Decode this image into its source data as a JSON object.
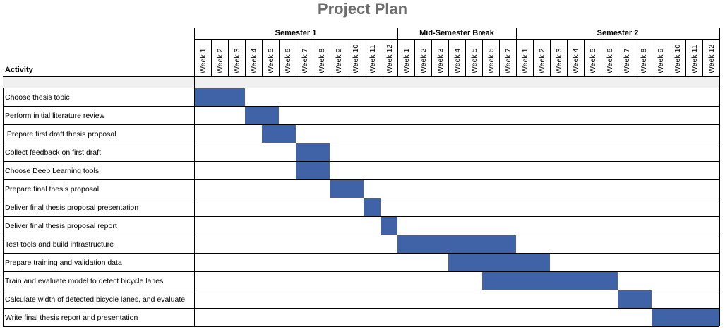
{
  "title": "Project Plan",
  "activity_header": "Activity",
  "bar_color": "#4063a8",
  "shade_color": "#f0f0f0",
  "chart_data": {
    "type": "gantt",
    "phases": [
      {
        "name": "Semester 1",
        "weeks": [
          "Week 1",
          "Week 2",
          "Week 3",
          "Week 4",
          "Week 5",
          "Week 6",
          "Week 7",
          "Week 8",
          "Week 9",
          "Week 10",
          "Week 11",
          "Week 12"
        ]
      },
      {
        "name": "Mid-Semester Break",
        "weeks": [
          "Week 1",
          "Week 2",
          "Week 3",
          "Week 4",
          "Week 5",
          "Week 6",
          "Week 7"
        ]
      },
      {
        "name": "Semester 2",
        "weeks": [
          "Week 1",
          "Week 2",
          "Week 3",
          "Week 4",
          "Week 5",
          "Week 6",
          "Week 7",
          "Week 8",
          "Week 9",
          "Week 10",
          "Week 11",
          "Week 12"
        ]
      }
    ],
    "tasks": [
      {
        "name": "Choose thesis topic",
        "start": 1,
        "end": 3
      },
      {
        "name": "Perform initial literature review",
        "start": 4,
        "end": 5
      },
      {
        "name": " Prepare first draft thesis proposal",
        "start": 5,
        "end": 6
      },
      {
        "name": "Collect feedback on first draft",
        "start": 7,
        "end": 8
      },
      {
        "name": "Choose Deep Learning tools",
        "start": 7,
        "end": 8
      },
      {
        "name": "Prepare final thesis proposal",
        "start": 9,
        "end": 10
      },
      {
        "name": "Deliver final thesis proposal presentation",
        "start": 11,
        "end": 11
      },
      {
        "name": "Deliver final thesis proposal report",
        "start": 12,
        "end": 12
      },
      {
        "name": "Test tools and build infrastructure",
        "start": 13,
        "end": 19
      },
      {
        "name": "Prepare training and validation data",
        "start": 16,
        "end": 21
      },
      {
        "name": "Train and evaluate model to detect bicycle lanes",
        "start": 18,
        "end": 25
      },
      {
        "name": "Calculate width of detected bicycle lanes, and evaluate",
        "start": 26,
        "end": 27
      },
      {
        "name": "Write final thesis report and presentation",
        "start": 28,
        "end": 31
      }
    ]
  }
}
